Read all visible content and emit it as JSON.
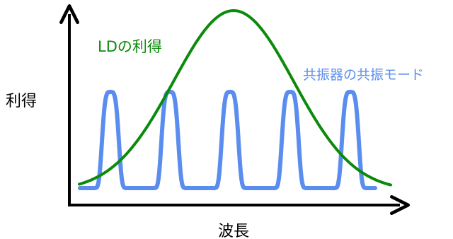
{
  "labels": {
    "y_axis": "利得",
    "x_axis": "波長",
    "gain_curve": "LDの利得",
    "modes": "共振器の共振モード"
  },
  "colors": {
    "gain": "#0b8a0b",
    "modes": "#5b8def",
    "axis": "#000000"
  },
  "diagram": {
    "gain_curve": {
      "shape": "gaussian",
      "peak_wavelength_fraction": 0.5
    },
    "resonator_modes": {
      "shape": "periodic narrow peaks",
      "count": 5
    }
  }
}
